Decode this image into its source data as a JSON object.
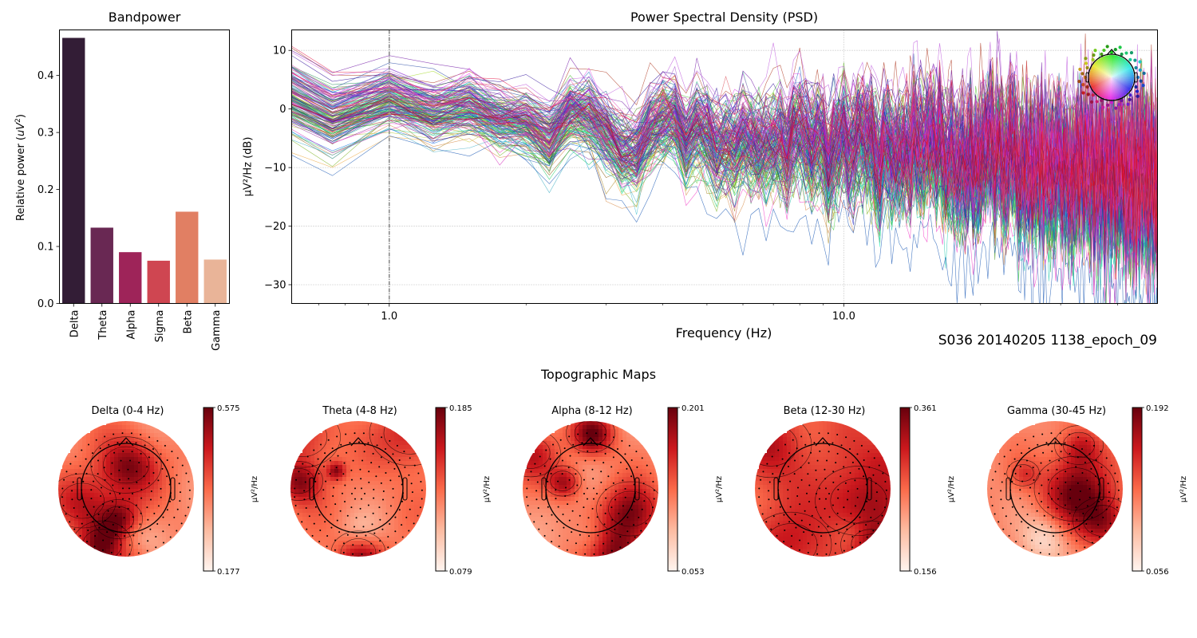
{
  "chart_data": [
    {
      "id": "bandpower",
      "type": "bar",
      "title": "Bandpower",
      "xlabel": "",
      "ylabel": "Relative power (uV²)",
      "ylabel_parts": {
        "prefix": "Relative power (",
        "unit": "uV",
        "sup": "2",
        "suffix": ")"
      },
      "categories": [
        "Delta",
        "Theta",
        "Alpha",
        "Sigma",
        "Beta",
        "Gamma"
      ],
      "values": [
        0.466,
        0.133,
        0.09,
        0.075,
        0.161,
        0.077
      ],
      "colors": [
        "#331d36",
        "#692853",
        "#9e2459",
        "#cf4651",
        "#e17f63",
        "#e9b498"
      ],
      "ylim": [
        0,
        0.48
      ],
      "yticks": [
        0.0,
        0.1,
        0.2,
        0.3,
        0.4
      ],
      "ytick_labels": [
        "0.0",
        "0.1",
        "0.2",
        "0.3",
        "0.4"
      ],
      "grid": false
    },
    {
      "id": "psd",
      "type": "line",
      "title": "Power Spectral Density (PSD)",
      "xlabel": "Frequency (Hz)",
      "ylabel": "µV²/Hz (dB)",
      "xscale": "log",
      "xlim": [
        0.61,
        49
      ],
      "ylim": [
        -33.2,
        13.5
      ],
      "xticks": [
        1.0,
        10.0
      ],
      "xtick_labels": [
        "1.0",
        "10.0"
      ],
      "xminor_ticks": [
        0.7,
        0.8,
        0.9,
        2,
        3,
        4,
        5,
        6,
        7,
        8,
        9,
        20,
        30,
        40
      ],
      "yticks": [
        -30,
        -20,
        -10,
        0,
        10
      ],
      "ytick_labels": [
        "−30",
        "−20",
        "−10",
        "0",
        "10"
      ],
      "grid": "dotted",
      "vline_x": 1.0,
      "n_channels": 180,
      "series_summary": {
        "description": "One trace per EEG channel, colored by scalp position (see sensor inset)",
        "mean_db_at": {
          "0.61": -1,
          "1.0": 1,
          "1.2": 2,
          "2": -3,
          "5": -6,
          "10": -7,
          "20": -9,
          "49": -14
        },
        "spread_db_at": {
          "0.61": 6,
          "1.0": 4,
          "2": 4,
          "5": 6,
          "10": 7,
          "20": 8,
          "49": 9
        },
        "max_db": 11.5,
        "min_db": -31
      },
      "legend": "top-right sensor-position inset (colored head)"
    },
    {
      "id": "topomaps",
      "type": "heatmap",
      "title": "Topographic Maps",
      "colormap": "Reds",
      "unit": "µV²/Hz",
      "maps": [
        {
          "title": "Delta (0-4 Hz)",
          "vmin": "0.177",
          "vmax": "0.575"
        },
        {
          "title": "Theta (4-8 Hz)",
          "vmin": "0.079",
          "vmax": "0.185"
        },
        {
          "title": "Alpha (8-12 Hz)",
          "vmin": "0.053",
          "vmax": "0.201"
        },
        {
          "title": "Beta (12-30 Hz)",
          "vmin": "0.156",
          "vmax": "0.361"
        },
        {
          "title": "Gamma (30-45 Hz)",
          "vmin": "0.056",
          "vmax": "0.192"
        }
      ]
    }
  ],
  "figure": {
    "subtitle": "S036 20140205 1138_epoch_09"
  }
}
